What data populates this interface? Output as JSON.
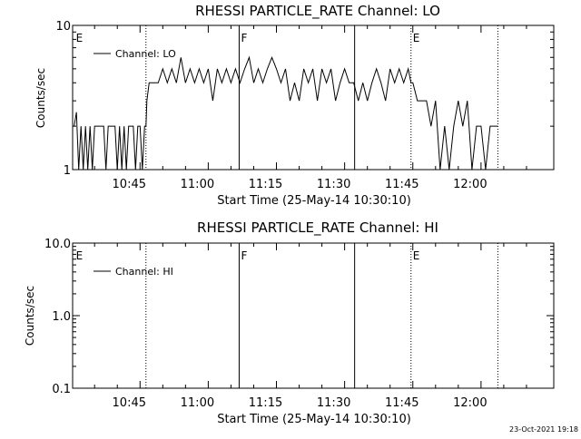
{
  "footer": {
    "timestamp": "23-Oct-2021 19:18"
  },
  "chart_data": [
    {
      "type": "line",
      "title": "RHESSI PARTICLE_RATE Channel: LO",
      "xlabel": "Start Time (25-May-14 10:30:10)",
      "ylabel": "Counts/sec",
      "x_unit": "minutes of day",
      "xlim": [
        630.17,
        736.0
      ],
      "x_ticks": [
        {
          "value": 645,
          "label": "10:45"
        },
        {
          "value": 660,
          "label": "11:00"
        },
        {
          "value": 675,
          "label": "11:15"
        },
        {
          "value": 690,
          "label": "11:30"
        },
        {
          "value": 705,
          "label": "11:45"
        },
        {
          "value": 720,
          "label": "12:00"
        }
      ],
      "yscale": "log",
      "ylim": [
        1,
        10
      ],
      "y_ticks": [
        {
          "value": 1,
          "label": "1"
        },
        {
          "value": 10,
          "label": "10"
        }
      ],
      "legend": {
        "entries": [
          "Channel: LO"
        ],
        "position": "top-left"
      },
      "markers": [
        {
          "x": 630.5,
          "label": "E",
          "style": "none"
        },
        {
          "x": 646.3,
          "label": "",
          "style": "dotted"
        },
        {
          "x": 666.8,
          "label": "F",
          "style": "solid"
        },
        {
          "x": 692.2,
          "label": "",
          "style": "solid"
        },
        {
          "x": 704.6,
          "label": "E",
          "style": "dotted"
        },
        {
          "x": 723.7,
          "label": "",
          "style": "dotted"
        }
      ],
      "series": [
        {
          "name": "Channel: LO",
          "x": [
            630.5,
            631.0,
            631.5,
            632.0,
            632.5,
            633.0,
            633.5,
            634.0,
            634.5,
            635.0,
            635.5,
            636.0,
            636.5,
            637.0,
            637.5,
            638.0,
            638.5,
            639.0,
            639.5,
            640.0,
            640.5,
            641.0,
            641.5,
            642.0,
            642.5,
            643.0,
            643.5,
            644.0,
            644.5,
            645.0,
            645.5,
            646.0,
            646.3,
            646.5,
            647.0,
            648.0,
            649.0,
            650.0,
            651.0,
            652.0,
            653.0,
            654.0,
            655.0,
            656.0,
            657.0,
            658.0,
            659.0,
            660.0,
            661.0,
            662.0,
            663.0,
            664.0,
            665.0,
            666.0,
            667.0,
            668.0,
            669.0,
            670.0,
            671.0,
            672.0,
            673.0,
            674.0,
            675.0,
            676.0,
            677.0,
            678.0,
            679.0,
            680.0,
            681.0,
            682.0,
            683.0,
            684.0,
            685.0,
            686.0,
            687.0,
            688.0,
            689.0,
            690.0,
            691.0,
            692.0,
            693.0,
            694.0,
            695.0,
            696.0,
            697.0,
            698.0,
            699.0,
            700.0,
            701.0,
            702.0,
            703.0,
            704.0,
            704.6,
            705.0,
            706.0,
            707.0,
            708.0,
            709.0,
            710.0,
            711.0,
            712.0,
            713.0,
            714.0,
            715.0,
            716.0,
            717.0,
            718.0,
            719.0,
            720.0,
            721.0,
            722.0,
            723.0,
            723.7
          ],
          "values": [
            2,
            2.5,
            1,
            2,
            1,
            2,
            1,
            2,
            1,
            2,
            2,
            2,
            2,
            2,
            1,
            2,
            2,
            2,
            2,
            1,
            2,
            1,
            2,
            1,
            2,
            2,
            2,
            1,
            2,
            2,
            1,
            2,
            2,
            3,
            4,
            4,
            4,
            5,
            4,
            5,
            4,
            6,
            4,
            5,
            4,
            5,
            4,
            5,
            3,
            5,
            4,
            5,
            4,
            5,
            4,
            5,
            6,
            4,
            5,
            4,
            5,
            6,
            5,
            4,
            5,
            3,
            4,
            3,
            5,
            4,
            5,
            3,
            5,
            4,
            5,
            3,
            4,
            5,
            4,
            4,
            3,
            4,
            3,
            4,
            5,
            4,
            3,
            5,
            4,
            5,
            4,
            5,
            4,
            4,
            3,
            3,
            3,
            2,
            3,
            1,
            2,
            1,
            2,
            3,
            2,
            3,
            1,
            2,
            2,
            1,
            2,
            2,
            2
          ]
        }
      ]
    },
    {
      "type": "line",
      "title": "RHESSI PARTICLE_RATE Channel: HI",
      "xlabel": "Start Time (25-May-14 10:30:10)",
      "ylabel": "Counts/sec",
      "x_unit": "minutes of day",
      "xlim": [
        630.17,
        736.0
      ],
      "x_ticks": [
        {
          "value": 645,
          "label": "10:45"
        },
        {
          "value": 660,
          "label": "11:00"
        },
        {
          "value": 675,
          "label": "11:15"
        },
        {
          "value": 690,
          "label": "11:30"
        },
        {
          "value": 705,
          "label": "11:45"
        },
        {
          "value": 720,
          "label": "12:00"
        }
      ],
      "yscale": "log",
      "ylim": [
        0.1,
        10
      ],
      "y_ticks": [
        {
          "value": 0.1,
          "label": "0.1"
        },
        {
          "value": 1,
          "label": "1.0"
        },
        {
          "value": 10,
          "label": "10.0"
        }
      ],
      "legend": {
        "entries": [
          "Channel: HI"
        ],
        "position": "top-left"
      },
      "markers": [
        {
          "x": 630.5,
          "label": "E",
          "style": "none"
        },
        {
          "x": 646.3,
          "label": "",
          "style": "dotted"
        },
        {
          "x": 666.8,
          "label": "F",
          "style": "solid"
        },
        {
          "x": 692.2,
          "label": "",
          "style": "solid"
        },
        {
          "x": 704.6,
          "label": "E",
          "style": "dotted"
        },
        {
          "x": 723.7,
          "label": "",
          "style": "dotted"
        }
      ],
      "series": [
        {
          "name": "Channel: HI",
          "x": [],
          "values": []
        }
      ]
    }
  ]
}
